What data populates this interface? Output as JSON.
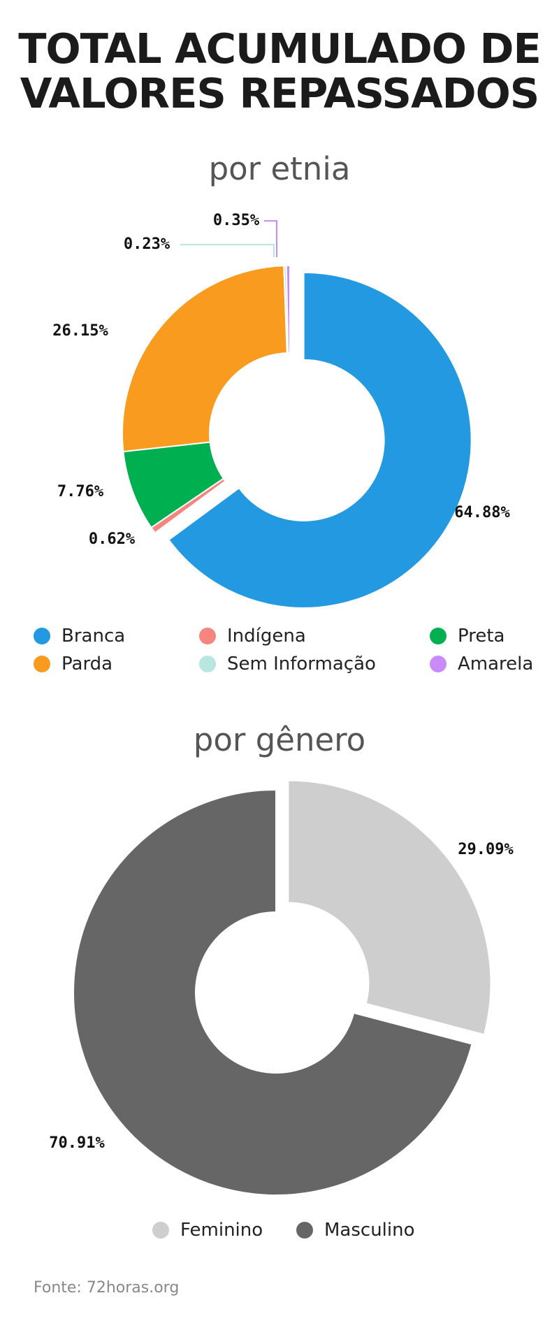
{
  "title_line1": "TOTAL ACUMULADO DE",
  "title_line2": "VALORES REPASSADOS",
  "source": "Fonte: 72horas.org",
  "chart_data": [
    {
      "type": "pie",
      "subtitle": "por etnia",
      "donut": true,
      "categories": [
        "Branca",
        "Indígena",
        "Preta",
        "Parda",
        "Sem Informação",
        "Amarela"
      ],
      "values": [
        64.88,
        0.62,
        7.76,
        26.15,
        0.23,
        0.35
      ],
      "value_labels": [
        "64.88%",
        "0.62%",
        "7.76%",
        "26.15%",
        "0.23%",
        "0.35%"
      ],
      "colors": [
        "#2299e0",
        "#f7857f",
        "#00b050",
        "#f99b1f",
        "#b8e6e1",
        "#c98bfb"
      ],
      "exploded": [
        "Branca"
      ],
      "legend_placement": "bottom"
    },
    {
      "type": "pie",
      "subtitle": "por gênero",
      "donut": true,
      "categories": [
        "Feminino",
        "Masculino"
      ],
      "values": [
        29.09,
        70.91
      ],
      "value_labels": [
        "29.09%",
        "70.91%"
      ],
      "colors": [
        "#cecece",
        "#666666"
      ],
      "exploded": [
        "Feminino"
      ],
      "legend_placement": "bottom"
    }
  ]
}
